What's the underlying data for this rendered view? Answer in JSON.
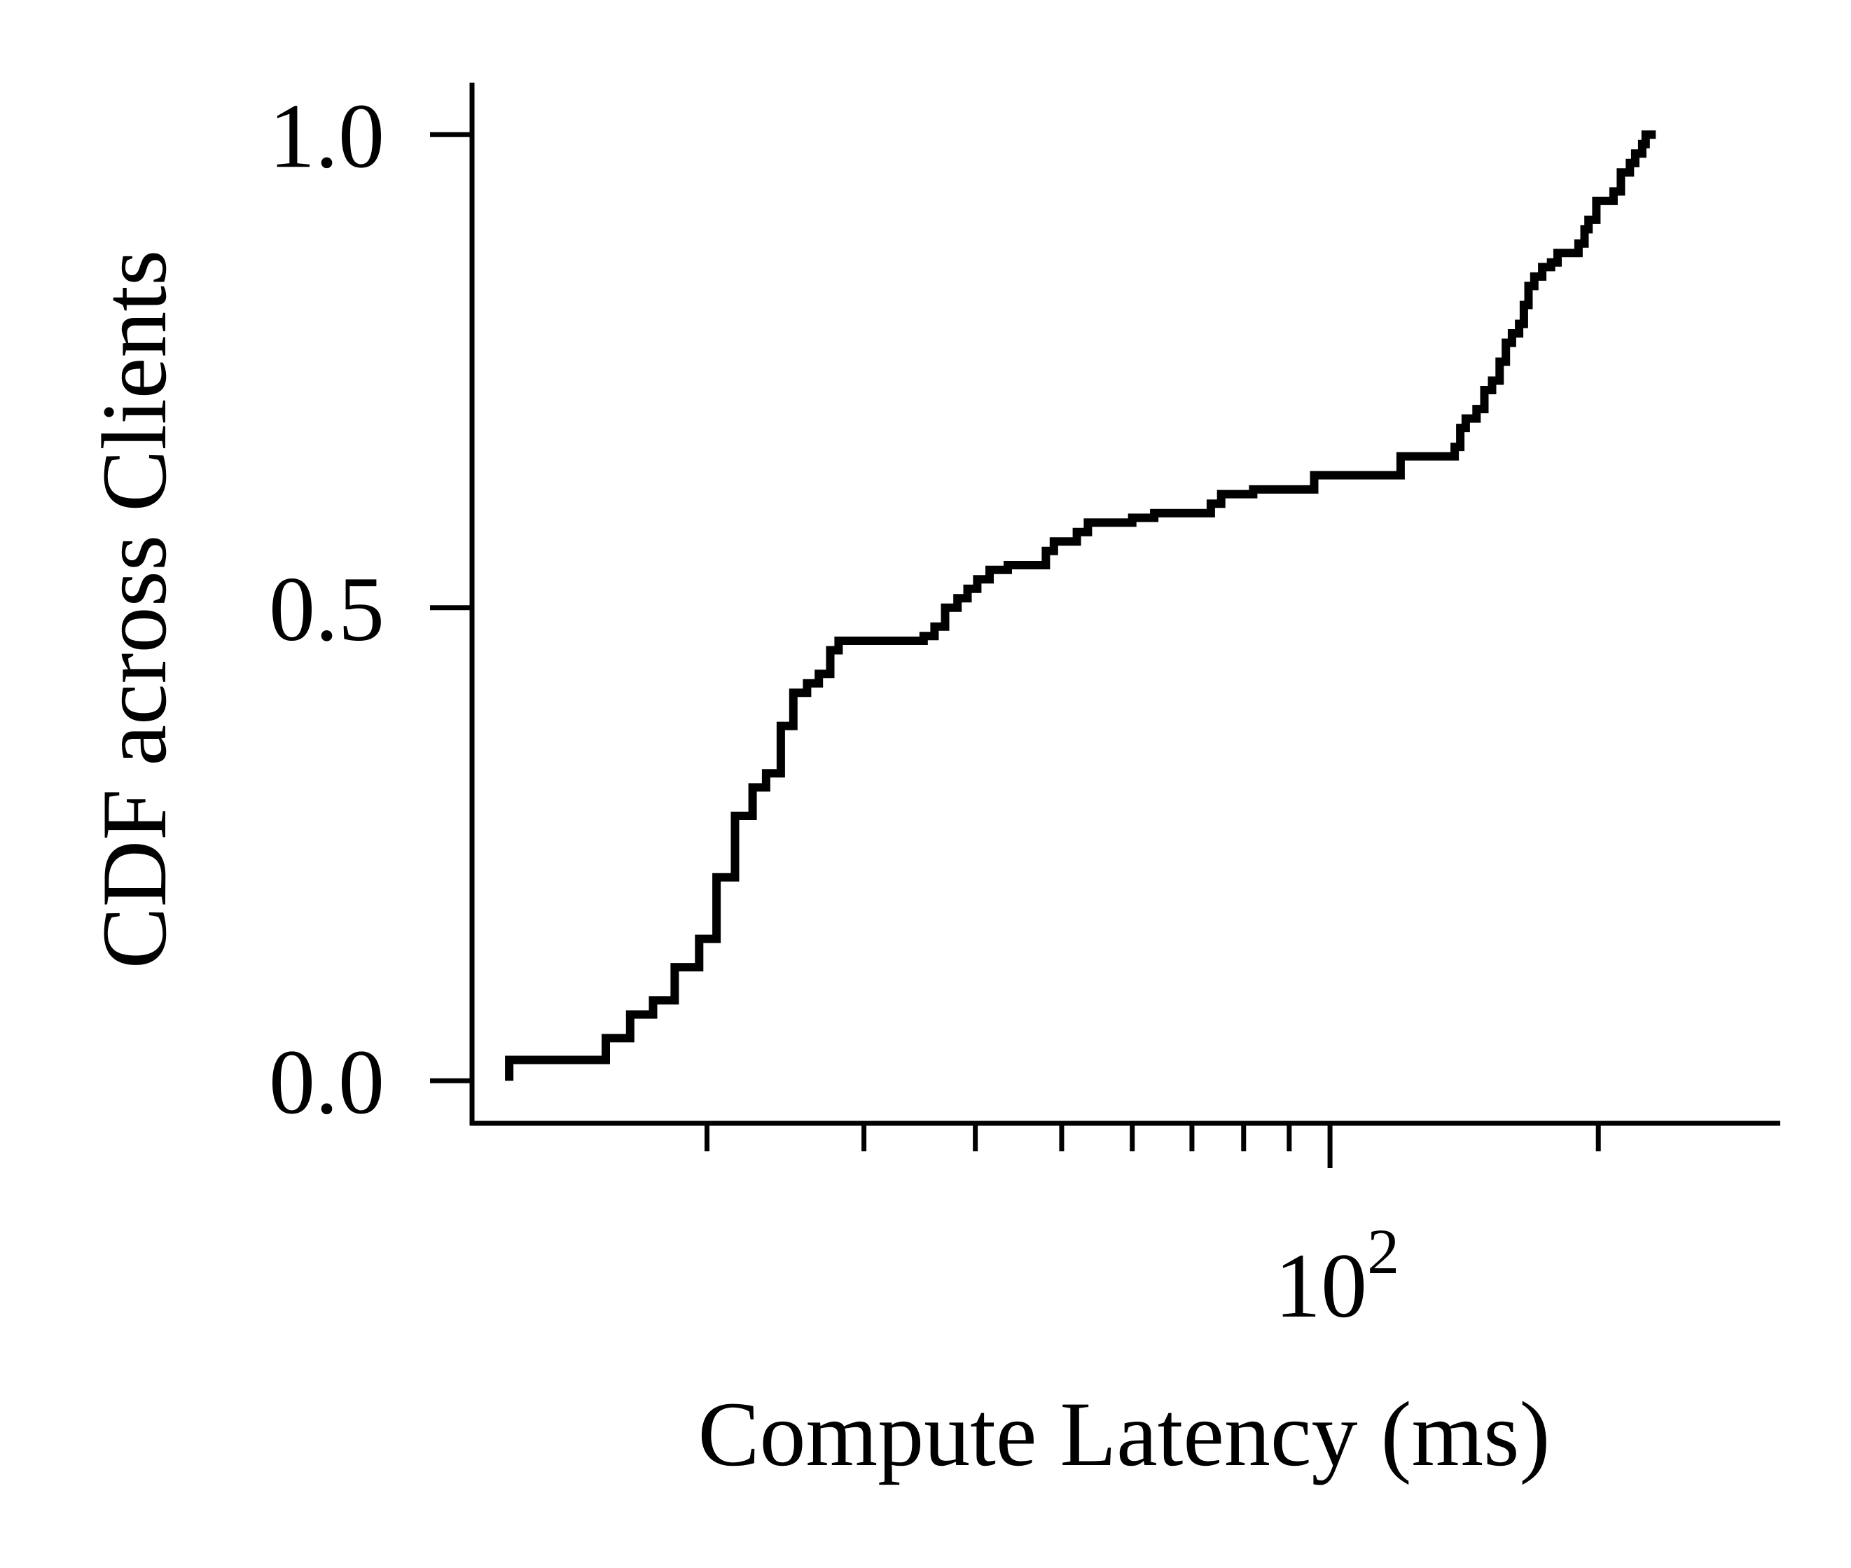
{
  "chart_data": {
    "type": "line",
    "title": "",
    "xlabel": "Compute Latency (ms)",
    "ylabel": "CDF across Clients",
    "xscale": "log",
    "xlim": [
      10.9,
      320
    ],
    "ylim": [
      -0.045,
      1.055
    ],
    "y_ticks": [
      {
        "value": 0.0,
        "label": "0.0"
      },
      {
        "value": 0.5,
        "label": "0.5"
      },
      {
        "value": 1.0,
        "label": "1.0"
      }
    ],
    "x_major_ticks": [
      {
        "value": 100,
        "base": "10",
        "exponent": "2"
      }
    ],
    "x_minor_ticks": [
      20,
      30,
      40,
      50,
      60,
      70,
      80,
      90,
      200
    ],
    "grid": false,
    "legend": "none",
    "line_color": "#000000",
    "series": [
      {
        "name": "",
        "step": "post",
        "points": [
          [
            12.0,
            0.0
          ],
          [
            12.0,
            0.022
          ],
          [
            15.4,
            0.022
          ],
          [
            15.4,
            0.045
          ],
          [
            16.4,
            0.045
          ],
          [
            16.4,
            0.07
          ],
          [
            17.4,
            0.07
          ],
          [
            17.4,
            0.085
          ],
          [
            18.4,
            0.085
          ],
          [
            18.4,
            0.12
          ],
          [
            19.6,
            0.12
          ],
          [
            19.6,
            0.15
          ],
          [
            20.5,
            0.15
          ],
          [
            20.5,
            0.215
          ],
          [
            21.5,
            0.215
          ],
          [
            21.5,
            0.28
          ],
          [
            22.5,
            0.28
          ],
          [
            22.5,
            0.31
          ],
          [
            23.3,
            0.31
          ],
          [
            23.3,
            0.325
          ],
          [
            24.2,
            0.325
          ],
          [
            24.2,
            0.375
          ],
          [
            25.0,
            0.375
          ],
          [
            25.0,
            0.41
          ],
          [
            25.9,
            0.41
          ],
          [
            25.9,
            0.42
          ],
          [
            26.7,
            0.42
          ],
          [
            26.7,
            0.43
          ],
          [
            27.5,
            0.43
          ],
          [
            27.5,
            0.455
          ],
          [
            28.1,
            0.455
          ],
          [
            28.1,
            0.465
          ],
          [
            35.0,
            0.465
          ],
          [
            35.0,
            0.47
          ],
          [
            36.0,
            0.47
          ],
          [
            36.0,
            0.48
          ],
          [
            37.0,
            0.48
          ],
          [
            37.0,
            0.5
          ],
          [
            38.2,
            0.5
          ],
          [
            38.2,
            0.51
          ],
          [
            39.2,
            0.51
          ],
          [
            39.2,
            0.52
          ],
          [
            40.2,
            0.52
          ],
          [
            40.2,
            0.53
          ],
          [
            41.5,
            0.53
          ],
          [
            41.5,
            0.54
          ],
          [
            43.5,
            0.54
          ],
          [
            43.5,
            0.545
          ],
          [
            48.0,
            0.545
          ],
          [
            48.0,
            0.56
          ],
          [
            49.0,
            0.56
          ],
          [
            49.0,
            0.57
          ],
          [
            52.0,
            0.57
          ],
          [
            52.0,
            0.58
          ],
          [
            53.5,
            0.58
          ],
          [
            53.5,
            0.59
          ],
          [
            60.0,
            0.59
          ],
          [
            60.0,
            0.595
          ],
          [
            63.5,
            0.595
          ],
          [
            63.5,
            0.6
          ],
          [
            73.5,
            0.6
          ],
          [
            73.5,
            0.61
          ],
          [
            75.5,
            0.61
          ],
          [
            75.5,
            0.62
          ],
          [
            82.0,
            0.62
          ],
          [
            82.0,
            0.625
          ],
          [
            96.0,
            0.625
          ],
          [
            96.0,
            0.64
          ],
          [
            120.0,
            0.64
          ],
          [
            120.0,
            0.66
          ],
          [
            138.0,
            0.66
          ],
          [
            138.0,
            0.67
          ],
          [
            140.0,
            0.67
          ],
          [
            140.0,
            0.69
          ],
          [
            142.0,
            0.69
          ],
          [
            142.0,
            0.7
          ],
          [
            146.0,
            0.7
          ],
          [
            146.0,
            0.71
          ],
          [
            149.0,
            0.71
          ],
          [
            149.0,
            0.73
          ],
          [
            152.0,
            0.73
          ],
          [
            152.0,
            0.74
          ],
          [
            155.0,
            0.74
          ],
          [
            155.0,
            0.76
          ],
          [
            157.5,
            0.76
          ],
          [
            157.5,
            0.78
          ],
          [
            160.0,
            0.78
          ],
          [
            160.0,
            0.79
          ],
          [
            163.0,
            0.79
          ],
          [
            163.0,
            0.8
          ],
          [
            165.0,
            0.8
          ],
          [
            165.0,
            0.82
          ],
          [
            167.0,
            0.82
          ],
          [
            167.0,
            0.84
          ],
          [
            169.5,
            0.84
          ],
          [
            169.5,
            0.85
          ],
          [
            173.0,
            0.85
          ],
          [
            173.0,
            0.86
          ],
          [
            177.0,
            0.86
          ],
          [
            177.0,
            0.865
          ],
          [
            180.0,
            0.865
          ],
          [
            180.0,
            0.875
          ],
          [
            190.0,
            0.875
          ],
          [
            190.0,
            0.885
          ],
          [
            193.0,
            0.885
          ],
          [
            193.0,
            0.9
          ],
          [
            195.0,
            0.9
          ],
          [
            195.0,
            0.91
          ],
          [
            199.0,
            0.91
          ],
          [
            199.0,
            0.93
          ],
          [
            208.0,
            0.93
          ],
          [
            208.0,
            0.94
          ],
          [
            212.0,
            0.94
          ],
          [
            212.0,
            0.96
          ],
          [
            217.0,
            0.96
          ],
          [
            217.0,
            0.97
          ],
          [
            220.0,
            0.97
          ],
          [
            220.0,
            0.98
          ],
          [
            224.0,
            0.98
          ],
          [
            224.0,
            0.99
          ],
          [
            226.0,
            0.99
          ],
          [
            226.0,
            1.0
          ],
          [
            232.0,
            1.0
          ]
        ]
      }
    ]
  }
}
